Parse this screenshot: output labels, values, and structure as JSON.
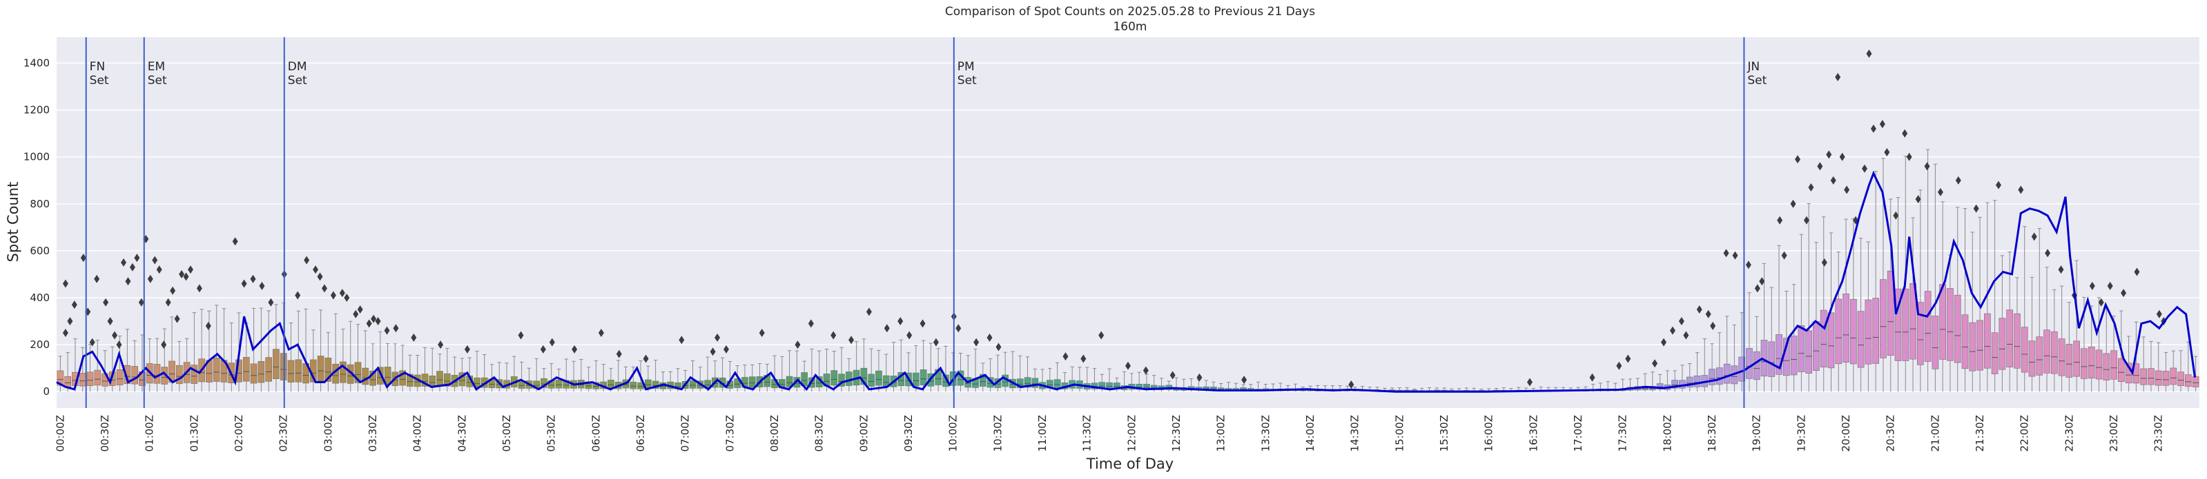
{
  "chart_data": {
    "type": "box+line",
    "title": "Comparison of Spot Counts on 2025.05.28 to Previous 21 Days",
    "subtitle": "160m",
    "xlabel": "Time of Day",
    "ylabel": "Spot Count",
    "ylim": [
      -70,
      1510
    ],
    "yticks": [
      0,
      200,
      400,
      600,
      800,
      1000,
      1200,
      1400
    ],
    "xtick_labels": [
      "00:00Z",
      "00:30Z",
      "01:00Z",
      "01:30Z",
      "02:00Z",
      "02:30Z",
      "03:00Z",
      "03:30Z",
      "04:00Z",
      "04:30Z",
      "05:00Z",
      "05:30Z",
      "06:00Z",
      "06:30Z",
      "07:00Z",
      "07:30Z",
      "08:00Z",
      "08:30Z",
      "09:00Z",
      "09:30Z",
      "10:00Z",
      "10:30Z",
      "11:00Z",
      "11:30Z",
      "12:00Z",
      "12:30Z",
      "13:00Z",
      "13:30Z",
      "14:00Z",
      "14:30Z",
      "15:00Z",
      "15:30Z",
      "16:00Z",
      "16:30Z",
      "17:00Z",
      "17:30Z",
      "18:00Z",
      "18:30Z",
      "19:00Z",
      "19:30Z",
      "20:00Z",
      "20:30Z",
      "21:00Z",
      "21:30Z",
      "22:00Z",
      "22:30Z",
      "23:00Z",
      "23:30Z"
    ],
    "n_bins": 288,
    "bin_minutes": 5,
    "grid": true,
    "colors": {
      "background": "#eaeaf2",
      "grid": "#ffffff",
      "line": "#0000cc",
      "vline": "#3a5fcd",
      "median": "#555555",
      "whisker": "#8a8a8a",
      "outlier": "#3d3d3d"
    },
    "box_color_stops": [
      {
        "hour": 0,
        "color": "#d99683"
      },
      {
        "hour": 3,
        "color": "#b08a4e"
      },
      {
        "hour": 5.5,
        "color": "#8a9a4a"
      },
      {
        "hour": 8,
        "color": "#5a9e6a"
      },
      {
        "hour": 11.5,
        "color": "#52a68c"
      },
      {
        "hour": 14.5,
        "color": "#4aa2b0"
      },
      {
        "hour": 17,
        "color": "#7fa0d8"
      },
      {
        "hour": 18.5,
        "color": "#b49ade"
      },
      {
        "hour": 20,
        "color": "#d88fd0"
      },
      {
        "hour": 24,
        "color": "#e08fb4"
      }
    ],
    "box_profile_hour": [
      0,
      0.5,
      1,
      1.5,
      2,
      2.5,
      3,
      3.5,
      4,
      5,
      6,
      7,
      8,
      9,
      10,
      11,
      12,
      13,
      14,
      15,
      16,
      17,
      17.5,
      18,
      18.5,
      19,
      19.5,
      20,
      20.5,
      21,
      21.5,
      22,
      22.5,
      23,
      23.5,
      24
    ],
    "box_profile_q3": [
      75,
      88,
      98,
      120,
      145,
      152,
      125,
      100,
      85,
      58,
      48,
      45,
      60,
      85,
      78,
      50,
      30,
      16,
      10,
      6,
      5,
      6,
      12,
      30,
      80,
      170,
      260,
      380,
      440,
      400,
      330,
      280,
      230,
      160,
      100,
      70
    ],
    "box_profile_whisker": [
      180,
      200,
      230,
      280,
      320,
      320,
      280,
      230,
      180,
      130,
      110,
      110,
      140,
      190,
      180,
      120,
      70,
      40,
      25,
      15,
      12,
      18,
      40,
      80,
      200,
      400,
      600,
      780,
      900,
      820,
      700,
      600,
      500,
      340,
      220,
      160
    ],
    "outliers": [
      {
        "t": 0.1,
        "v": 250
      },
      {
        "t": 0.1,
        "v": 460
      },
      {
        "t": 0.15,
        "v": 300
      },
      {
        "t": 0.2,
        "v": 370
      },
      {
        "t": 0.3,
        "v": 570
      },
      {
        "t": 0.35,
        "v": 340
      },
      {
        "t": 0.4,
        "v": 210
      },
      {
        "t": 0.45,
        "v": 480
      },
      {
        "t": 0.55,
        "v": 380
      },
      {
        "t": 0.6,
        "v": 300
      },
      {
        "t": 0.65,
        "v": 240
      },
      {
        "t": 0.7,
        "v": 200
      },
      {
        "t": 0.75,
        "v": 550
      },
      {
        "t": 0.8,
        "v": 470
      },
      {
        "t": 0.85,
        "v": 530
      },
      {
        "t": 0.9,
        "v": 570
      },
      {
        "t": 0.95,
        "v": 380
      },
      {
        "t": 1.0,
        "v": 650
      },
      {
        "t": 1.05,
        "v": 480
      },
      {
        "t": 1.1,
        "v": 560
      },
      {
        "t": 1.15,
        "v": 520
      },
      {
        "t": 1.2,
        "v": 200
      },
      {
        "t": 1.25,
        "v": 380
      },
      {
        "t": 1.3,
        "v": 430
      },
      {
        "t": 1.35,
        "v": 310
      },
      {
        "t": 1.4,
        "v": 500
      },
      {
        "t": 1.45,
        "v": 490
      },
      {
        "t": 1.5,
        "v": 520
      },
      {
        "t": 1.6,
        "v": 440
      },
      {
        "t": 1.7,
        "v": 280
      },
      {
        "t": 2.0,
        "v": 640
      },
      {
        "t": 2.1,
        "v": 460
      },
      {
        "t": 2.2,
        "v": 480
      },
      {
        "t": 2.3,
        "v": 450
      },
      {
        "t": 2.4,
        "v": 380
      },
      {
        "t": 2.55,
        "v": 500
      },
      {
        "t": 2.7,
        "v": 410
      },
      {
        "t": 2.8,
        "v": 560
      },
      {
        "t": 2.9,
        "v": 520
      },
      {
        "t": 2.95,
        "v": 490
      },
      {
        "t": 3.0,
        "v": 440
      },
      {
        "t": 3.1,
        "v": 410
      },
      {
        "t": 3.2,
        "v": 420
      },
      {
        "t": 3.25,
        "v": 400
      },
      {
        "t": 3.35,
        "v": 330
      },
      {
        "t": 3.4,
        "v": 350
      },
      {
        "t": 3.5,
        "v": 290
      },
      {
        "t": 3.55,
        "v": 310
      },
      {
        "t": 3.6,
        "v": 300
      },
      {
        "t": 3.7,
        "v": 260
      },
      {
        "t": 3.8,
        "v": 270
      },
      {
        "t": 4.0,
        "v": 230
      },
      {
        "t": 4.3,
        "v": 200
      },
      {
        "t": 4.6,
        "v": 180
      },
      {
        "t": 5.2,
        "v": 240
      },
      {
        "t": 5.45,
        "v": 180
      },
      {
        "t": 5.55,
        "v": 210
      },
      {
        "t": 5.8,
        "v": 180
      },
      {
        "t": 6.1,
        "v": 250
      },
      {
        "t": 6.3,
        "v": 160
      },
      {
        "t": 6.6,
        "v": 140
      },
      {
        "t": 7.0,
        "v": 220
      },
      {
        "t": 7.35,
        "v": 170
      },
      {
        "t": 7.4,
        "v": 230
      },
      {
        "t": 7.5,
        "v": 180
      },
      {
        "t": 7.9,
        "v": 250
      },
      {
        "t": 8.3,
        "v": 200
      },
      {
        "t": 8.45,
        "v": 290
      },
      {
        "t": 8.7,
        "v": 240
      },
      {
        "t": 8.9,
        "v": 220
      },
      {
        "t": 9.1,
        "v": 340
      },
      {
        "t": 9.3,
        "v": 270
      },
      {
        "t": 9.45,
        "v": 300
      },
      {
        "t": 9.55,
        "v": 240
      },
      {
        "t": 9.7,
        "v": 290
      },
      {
        "t": 9.85,
        "v": 210
      },
      {
        "t": 10.05,
        "v": 320
      },
      {
        "t": 10.1,
        "v": 270
      },
      {
        "t": 10.3,
        "v": 210
      },
      {
        "t": 10.45,
        "v": 230
      },
      {
        "t": 10.55,
        "v": 190
      },
      {
        "t": 11.3,
        "v": 150
      },
      {
        "t": 11.5,
        "v": 140
      },
      {
        "t": 11.7,
        "v": 240
      },
      {
        "t": 12.0,
        "v": 110
      },
      {
        "t": 12.2,
        "v": 90
      },
      {
        "t": 12.5,
        "v": 70
      },
      {
        "t": 12.8,
        "v": 60
      },
      {
        "t": 13.3,
        "v": 50
      },
      {
        "t": 14.5,
        "v": 30
      },
      {
        "t": 16.5,
        "v": 40
      },
      {
        "t": 17.2,
        "v": 60
      },
      {
        "t": 17.5,
        "v": 110
      },
      {
        "t": 17.6,
        "v": 140
      },
      {
        "t": 17.9,
        "v": 120
      },
      {
        "t": 18.0,
        "v": 210
      },
      {
        "t": 18.1,
        "v": 260
      },
      {
        "t": 18.2,
        "v": 300
      },
      {
        "t": 18.25,
        "v": 240
      },
      {
        "t": 18.4,
        "v": 350
      },
      {
        "t": 18.5,
        "v": 330
      },
      {
        "t": 18.55,
        "v": 280
      },
      {
        "t": 18.7,
        "v": 590
      },
      {
        "t": 18.8,
        "v": 580
      },
      {
        "t": 18.95,
        "v": 540
      },
      {
        "t": 19.05,
        "v": 440
      },
      {
        "t": 19.1,
        "v": 470
      },
      {
        "t": 19.3,
        "v": 730
      },
      {
        "t": 19.35,
        "v": 580
      },
      {
        "t": 19.45,
        "v": 800
      },
      {
        "t": 19.5,
        "v": 990
      },
      {
        "t": 19.6,
        "v": 730
      },
      {
        "t": 19.65,
        "v": 870
      },
      {
        "t": 19.75,
        "v": 960
      },
      {
        "t": 19.8,
        "v": 550
      },
      {
        "t": 19.85,
        "v": 1010
      },
      {
        "t": 19.9,
        "v": 900
      },
      {
        "t": 19.95,
        "v": 1340
      },
      {
        "t": 20.0,
        "v": 1000
      },
      {
        "t": 20.05,
        "v": 860
      },
      {
        "t": 20.15,
        "v": 730
      },
      {
        "t": 20.25,
        "v": 950
      },
      {
        "t": 20.3,
        "v": 1440
      },
      {
        "t": 20.35,
        "v": 1120
      },
      {
        "t": 20.45,
        "v": 1140
      },
      {
        "t": 20.5,
        "v": 1020
      },
      {
        "t": 20.6,
        "v": 750
      },
      {
        "t": 20.7,
        "v": 1100
      },
      {
        "t": 20.75,
        "v": 1000
      },
      {
        "t": 20.85,
        "v": 820
      },
      {
        "t": 20.95,
        "v": 960
      },
      {
        "t": 21.1,
        "v": 850
      },
      {
        "t": 21.3,
        "v": 900
      },
      {
        "t": 21.5,
        "v": 780
      },
      {
        "t": 21.75,
        "v": 880
      },
      {
        "t": 22.0,
        "v": 860
      },
      {
        "t": 22.15,
        "v": 660
      },
      {
        "t": 22.3,
        "v": 590
      },
      {
        "t": 22.45,
        "v": 520
      },
      {
        "t": 22.6,
        "v": 410
      },
      {
        "t": 22.8,
        "v": 450
      },
      {
        "t": 22.9,
        "v": 380
      },
      {
        "t": 23.0,
        "v": 450
      },
      {
        "t": 23.15,
        "v": 420
      },
      {
        "t": 23.3,
        "v": 510
      },
      {
        "t": 23.55,
        "v": 330
      },
      {
        "t": 23.6,
        "v": 300
      }
    ],
    "line_series": {
      "name": "2025.05.28",
      "points": [
        [
          0.0,
          40
        ],
        [
          0.1,
          20
        ],
        [
          0.2,
          10
        ],
        [
          0.3,
          150
        ],
        [
          0.4,
          170
        ],
        [
          0.5,
          110
        ],
        [
          0.6,
          40
        ],
        [
          0.7,
          160
        ],
        [
          0.8,
          40
        ],
        [
          0.9,
          60
        ],
        [
          1.0,
          100
        ],
        [
          1.1,
          60
        ],
        [
          1.2,
          80
        ],
        [
          1.3,
          40
        ],
        [
          1.4,
          60
        ],
        [
          1.5,
          100
        ],
        [
          1.6,
          80
        ],
        [
          1.7,
          130
        ],
        [
          1.8,
          160
        ],
        [
          1.9,
          120
        ],
        [
          2.0,
          40
        ],
        [
          2.1,
          320
        ],
        [
          2.2,
          180
        ],
        [
          2.3,
          220
        ],
        [
          2.4,
          260
        ],
        [
          2.5,
          290
        ],
        [
          2.6,
          180
        ],
        [
          2.7,
          200
        ],
        [
          2.8,
          120
        ],
        [
          2.9,
          40
        ],
        [
          3.0,
          40
        ],
        [
          3.1,
          80
        ],
        [
          3.2,
          110
        ],
        [
          3.3,
          80
        ],
        [
          3.4,
          40
        ],
        [
          3.5,
          60
        ],
        [
          3.6,
          100
        ],
        [
          3.7,
          20
        ],
        [
          3.8,
          60
        ],
        [
          3.9,
          80
        ],
        [
          4.0,
          60
        ],
        [
          4.2,
          20
        ],
        [
          4.4,
          30
        ],
        [
          4.6,
          80
        ],
        [
          4.7,
          10
        ],
        [
          4.9,
          60
        ],
        [
          5.0,
          20
        ],
        [
          5.2,
          50
        ],
        [
          5.4,
          10
        ],
        [
          5.6,
          60
        ],
        [
          5.8,
          30
        ],
        [
          6.0,
          40
        ],
        [
          6.2,
          10
        ],
        [
          6.4,
          40
        ],
        [
          6.5,
          100
        ],
        [
          6.6,
          10
        ],
        [
          6.8,
          30
        ],
        [
          7.0,
          10
        ],
        [
          7.1,
          60
        ],
        [
          7.3,
          10
        ],
        [
          7.4,
          50
        ],
        [
          7.5,
          20
        ],
        [
          7.6,
          80
        ],
        [
          7.7,
          20
        ],
        [
          7.8,
          10
        ],
        [
          7.9,
          50
        ],
        [
          8.0,
          80
        ],
        [
          8.1,
          20
        ],
        [
          8.2,
          10
        ],
        [
          8.3,
          50
        ],
        [
          8.4,
          10
        ],
        [
          8.5,
          70
        ],
        [
          8.6,
          30
        ],
        [
          8.7,
          10
        ],
        [
          8.8,
          40
        ],
        [
          9.0,
          60
        ],
        [
          9.1,
          10
        ],
        [
          9.3,
          20
        ],
        [
          9.5,
          80
        ],
        [
          9.6,
          20
        ],
        [
          9.7,
          10
        ],
        [
          9.8,
          60
        ],
        [
          9.9,
          100
        ],
        [
          10.0,
          30
        ],
        [
          10.1,
          80
        ],
        [
          10.2,
          40
        ],
        [
          10.4,
          70
        ],
        [
          10.5,
          30
        ],
        [
          10.6,
          60
        ],
        [
          10.8,
          20
        ],
        [
          11.0,
          30
        ],
        [
          11.2,
          10
        ],
        [
          11.4,
          30
        ],
        [
          11.6,
          20
        ],
        [
          11.8,
          10
        ],
        [
          12.0,
          20
        ],
        [
          12.2,
          10
        ],
        [
          12.5,
          15
        ],
        [
          13.0,
          5
        ],
        [
          13.5,
          5
        ],
        [
          14.0,
          10
        ],
        [
          14.3,
          5
        ],
        [
          14.5,
          8
        ],
        [
          15.0,
          0
        ],
        [
          16.0,
          0
        ],
        [
          17.0,
          5
        ],
        [
          17.5,
          8
        ],
        [
          17.8,
          20
        ],
        [
          18.0,
          15
        ],
        [
          18.3,
          30
        ],
        [
          18.6,
          50
        ],
        [
          18.9,
          90
        ],
        [
          19.1,
          140
        ],
        [
          19.3,
          100
        ],
        [
          19.4,
          230
        ],
        [
          19.5,
          280
        ],
        [
          19.6,
          260
        ],
        [
          19.7,
          300
        ],
        [
          19.8,
          270
        ],
        [
          19.9,
          380
        ],
        [
          20.0,
          470
        ],
        [
          20.1,
          610
        ],
        [
          20.2,
          760
        ],
        [
          20.3,
          880
        ],
        [
          20.35,
          930
        ],
        [
          20.45,
          850
        ],
        [
          20.55,
          620
        ],
        [
          20.6,
          330
        ],
        [
          20.7,
          450
        ],
        [
          20.75,
          660
        ],
        [
          20.85,
          330
        ],
        [
          20.95,
          320
        ],
        [
          21.05,
          380
        ],
        [
          21.15,
          470
        ],
        [
          21.25,
          640
        ],
        [
          21.35,
          560
        ],
        [
          21.45,
          420
        ],
        [
          21.55,
          360
        ],
        [
          21.7,
          470
        ],
        [
          21.8,
          510
        ],
        [
          21.9,
          500
        ],
        [
          22.0,
          760
        ],
        [
          22.1,
          780
        ],
        [
          22.2,
          770
        ],
        [
          22.3,
          750
        ],
        [
          22.4,
          680
        ],
        [
          22.5,
          830
        ],
        [
          22.55,
          580
        ],
        [
          22.65,
          270
        ],
        [
          22.75,
          390
        ],
        [
          22.85,
          250
        ],
        [
          22.95,
          370
        ],
        [
          23.05,
          290
        ],
        [
          23.15,
          140
        ],
        [
          23.25,
          80
        ],
        [
          23.35,
          290
        ],
        [
          23.45,
          300
        ],
        [
          23.55,
          270
        ],
        [
          23.65,
          320
        ],
        [
          23.75,
          360
        ],
        [
          23.85,
          330
        ],
        [
          23.95,
          60
        ]
      ]
    },
    "vlines": [
      {
        "t": 0.33,
        "label_line1": "FN",
        "label_line2": "Set"
      },
      {
        "t": 0.98,
        "label_line1": "EM",
        "label_line2": "Set"
      },
      {
        "t": 2.55,
        "label_line1": "DM",
        "label_line2": "Set"
      },
      {
        "t": 10.05,
        "label_line1": "PM",
        "label_line2": "Set"
      },
      {
        "t": 18.9,
        "label_line1": "JN",
        "label_line2": "Set"
      }
    ]
  }
}
